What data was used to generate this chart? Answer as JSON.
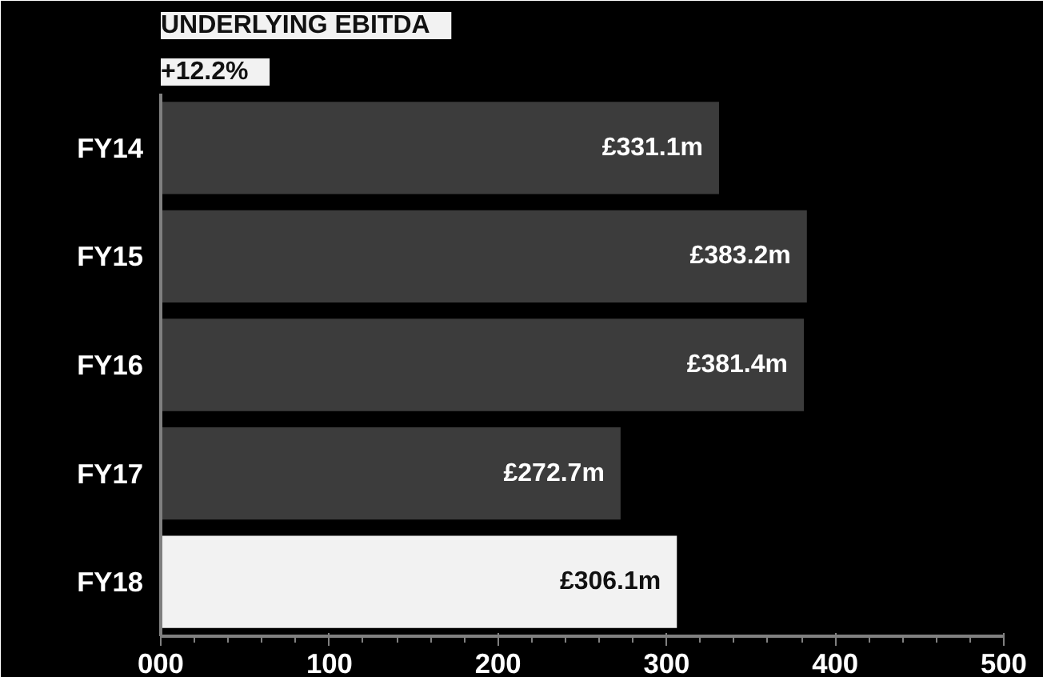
{
  "chart_data": {
    "type": "bar",
    "orientation": "horizontal",
    "title": "UNDERLYING EBITDA",
    "subtitle": "+12.2%",
    "categories": [
      "FY14",
      "FY15",
      "FY16",
      "FY17",
      "FY18"
    ],
    "values": [
      331.1,
      383.2,
      381.4,
      272.7,
      306.1
    ],
    "colors": [
      "#3c3c3c",
      "#3c3c3c",
      "#3c3c3c",
      "#3c3c3c",
      "#f2f2f2"
    ],
    "value_labels": [
      "£331.1m",
      "£383.2m",
      "£381.4m",
      "£272.7m",
      "£306.1m"
    ],
    "xlim": [
      0,
      500
    ],
    "xticks": [
      {
        "value": 0,
        "label": "000"
      },
      100,
      200,
      300,
      400,
      500
    ],
    "grid": false
  }
}
